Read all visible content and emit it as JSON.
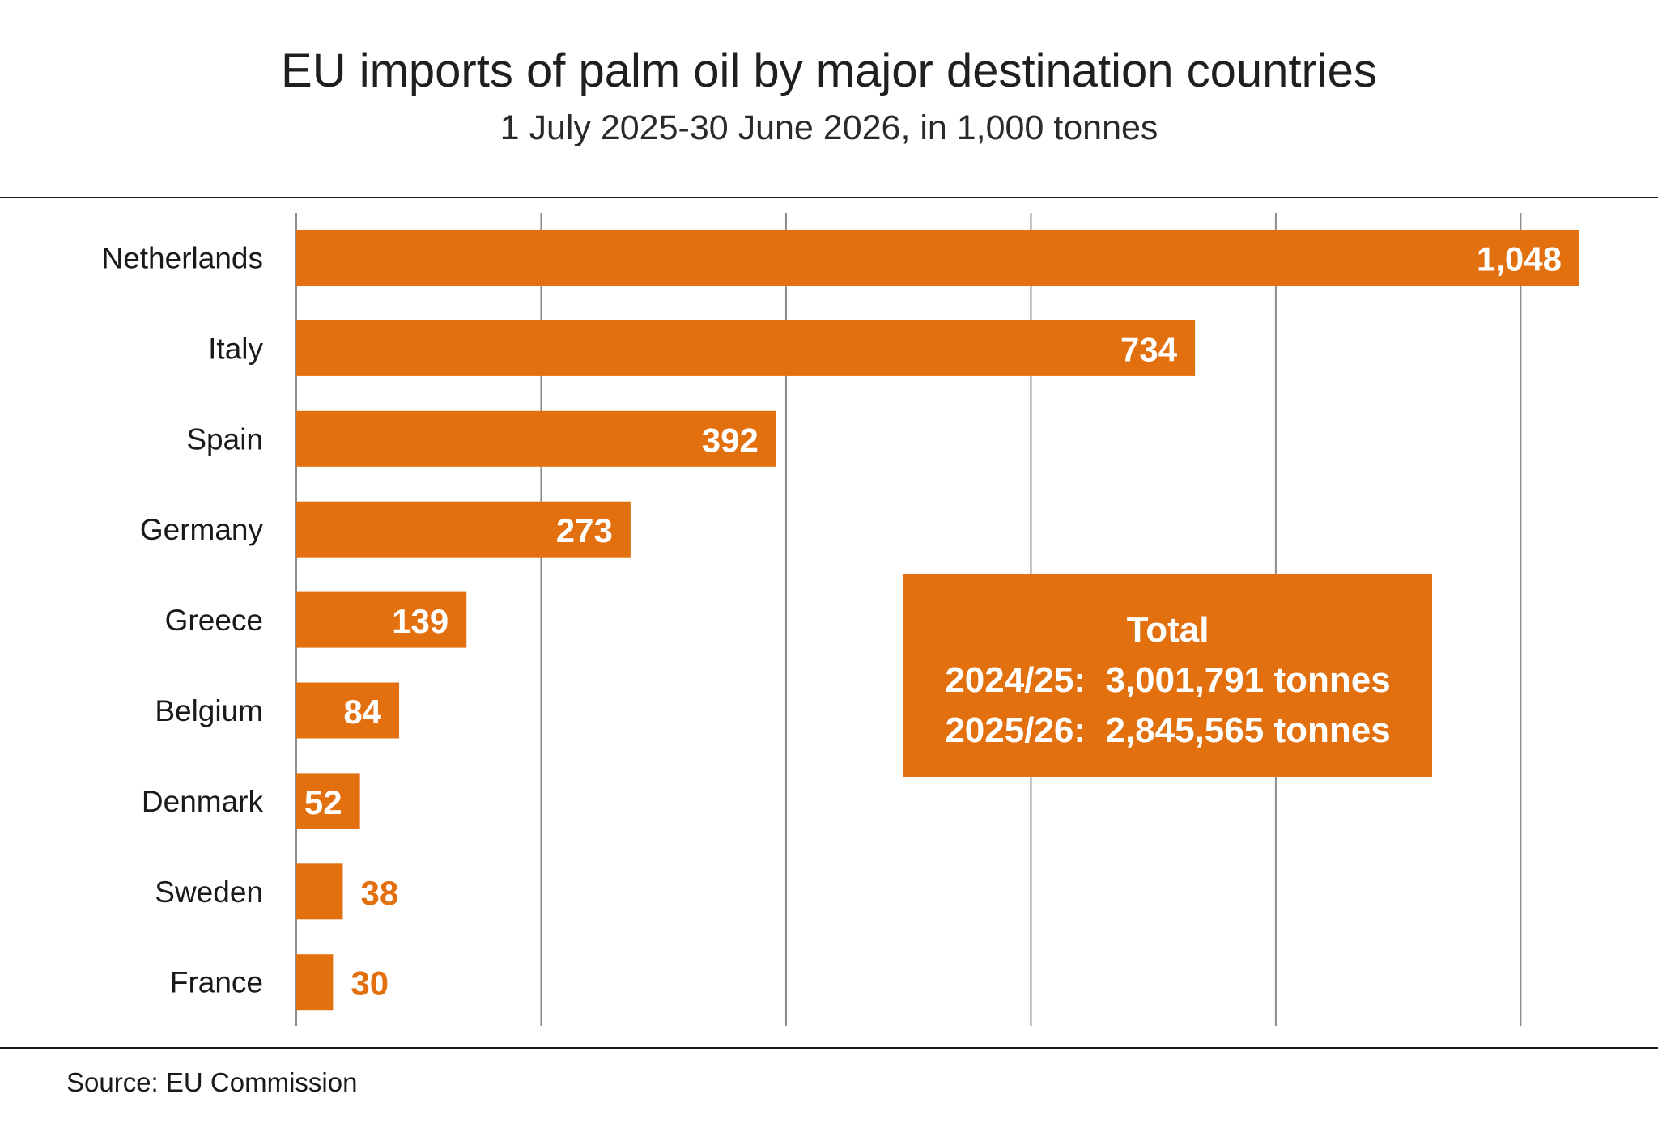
{
  "chart_data": {
    "type": "bar",
    "orientation": "horizontal",
    "title": "EU imports of palm oil by major destination countries",
    "subtitle": "1 July 2025-30 June 2026, in 1,000 tonnes",
    "categories": [
      "Netherlands",
      "Italy",
      "Spain",
      "Germany",
      "Greece",
      "Belgium",
      "Denmark",
      "Sweden",
      "France"
    ],
    "values": [
      1048,
      734,
      392,
      273,
      139,
      84,
      52,
      38,
      30
    ],
    "value_labels": [
      "1,048",
      "734",
      "392",
      "273",
      "139",
      "84",
      "52",
      "38",
      "30"
    ],
    "xlim": [
      0,
      1100
    ],
    "x_gridlines": [
      0,
      200,
      400,
      600,
      800,
      1000
    ],
    "grid": true,
    "bar_color": "#e3700f",
    "label_inside_color": "#ffffff",
    "label_outside_color": "#e3700f"
  },
  "annotation": {
    "heading": "Total",
    "lines": [
      "2024/25:  3,001,791 tonnes",
      "2025/26:  2,845,565 tonnes"
    ]
  },
  "source": "Source: EU Commission"
}
